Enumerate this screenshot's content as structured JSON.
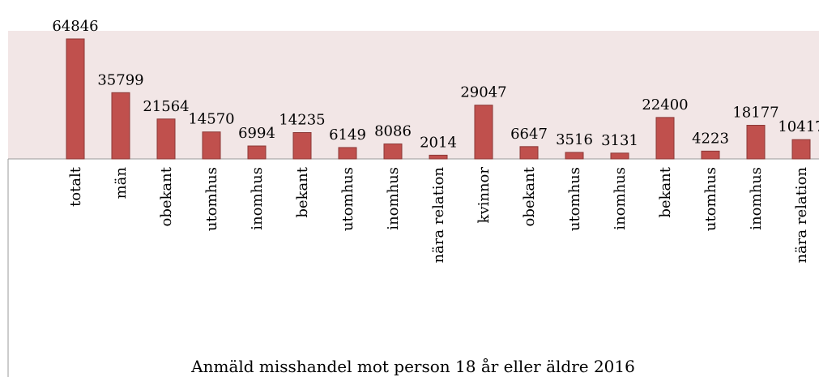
{
  "chart_data": {
    "type": "bar",
    "title": "Anmäld misshandel mot person 18 år eller äldre 2016",
    "categories": [
      "totalt",
      "män",
      "obekant",
      "utomhus",
      "inomhus",
      "bekant",
      "utomhus",
      "inomhus",
      "nära relation",
      "kvinnor",
      "obekant",
      "utomhus",
      "inomhus",
      "bekant",
      "utomhus",
      "inomhus",
      "nära relation"
    ],
    "values": [
      64846,
      35799,
      21564,
      14570,
      6994,
      14235,
      6149,
      8086,
      2014,
      29047,
      6647,
      3516,
      3131,
      22400,
      4223,
      18177,
      10417
    ],
    "color": "#c0504d"
  }
}
